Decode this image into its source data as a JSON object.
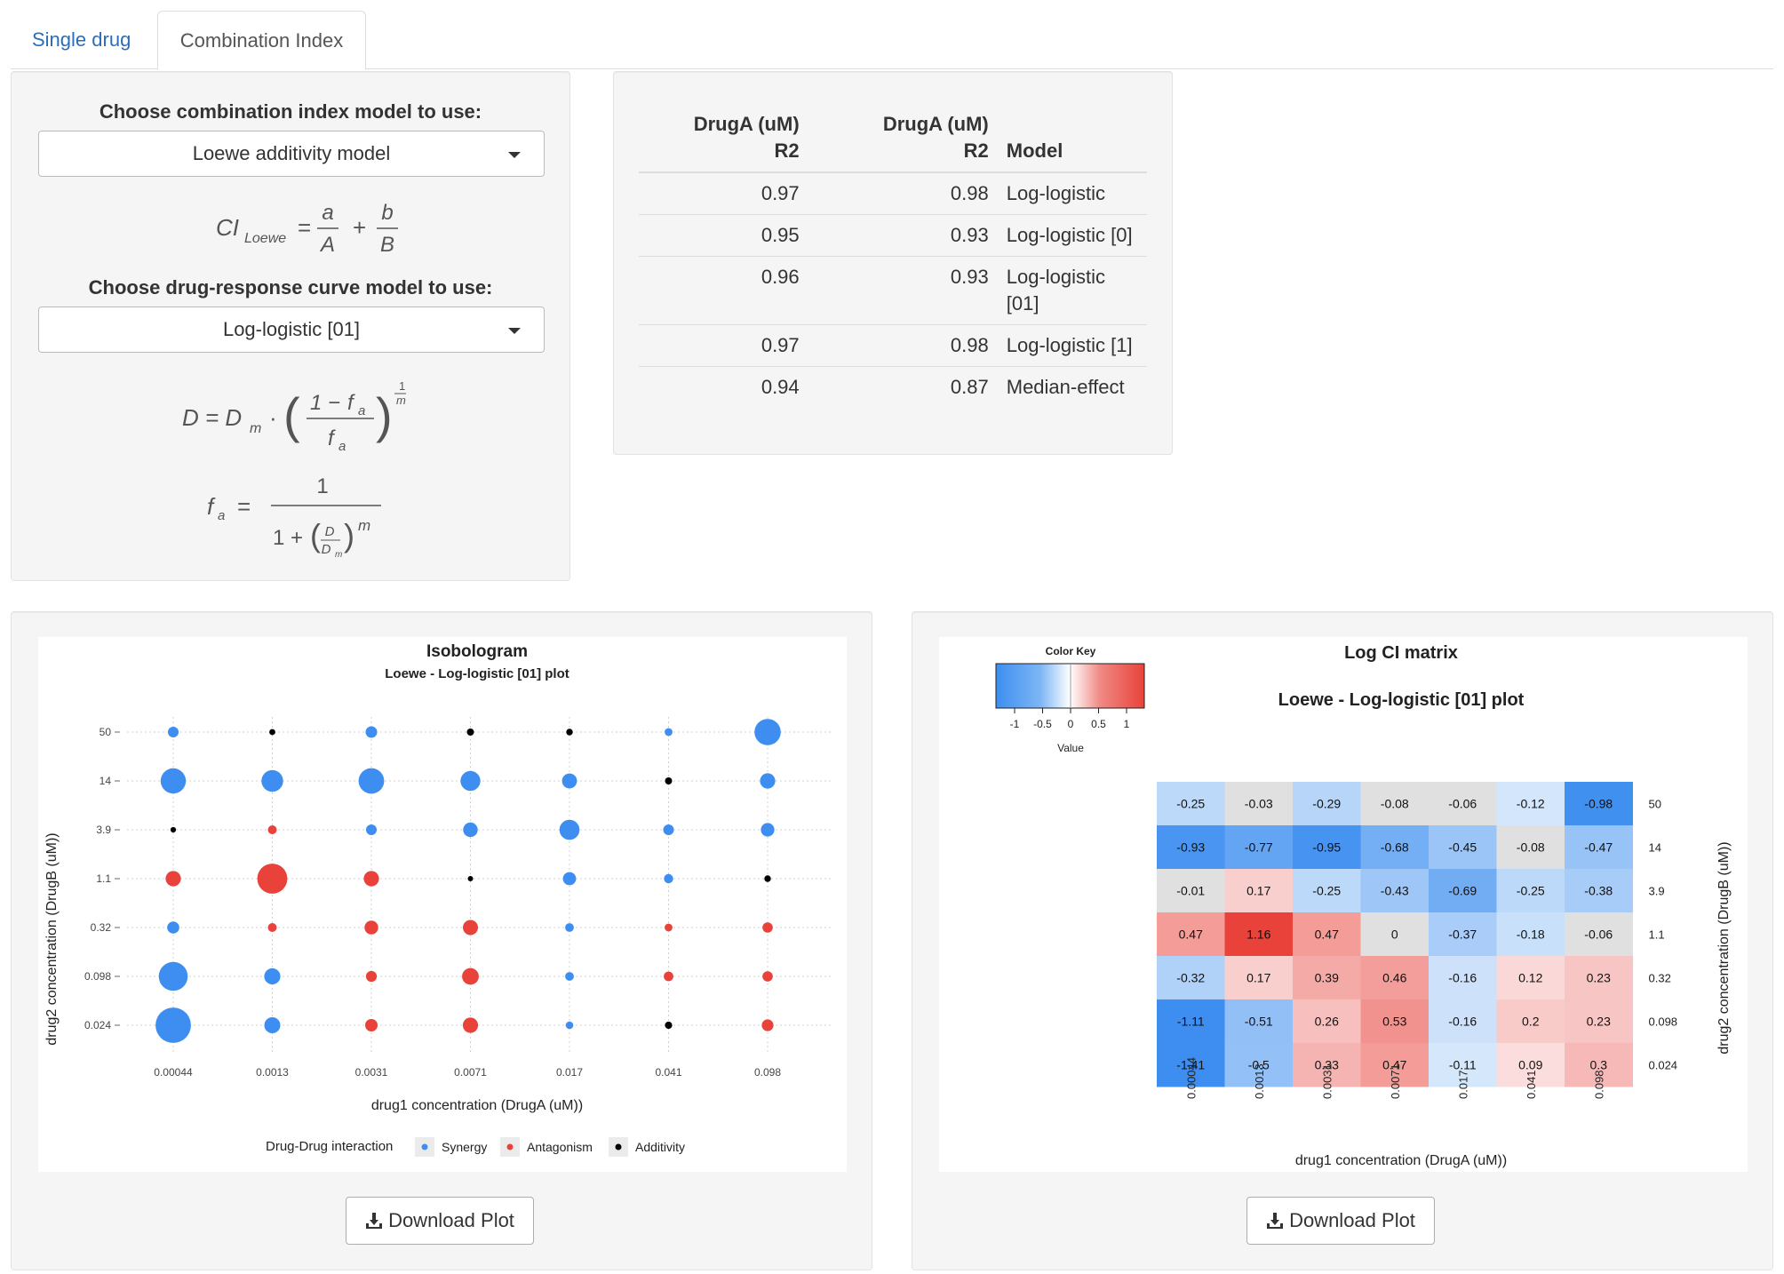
{
  "tabs": [
    {
      "label": "Single drug",
      "active": false
    },
    {
      "label": "Combination Index",
      "active": true
    }
  ],
  "controls": {
    "ci_model_label": "Choose combination index model to use:",
    "ci_model_value": "Loewe additivity model",
    "curve_model_label": "Choose drug-response curve model to use:",
    "curve_model_value": "Log-logistic [01]"
  },
  "formulas": {
    "ci_lhs": "CI",
    "ci_sub": "Loewe",
    "ci_a": "a",
    "ci_A": "A",
    "ci_b": "b",
    "ci_B": "B",
    "d_lhs": "D = D",
    "d_sub": "m",
    "fa": "f",
    "fa_sub": "a",
    "one_minus": "1 −",
    "exp_num": "1",
    "exp_den": "m",
    "one": "1",
    "one_plus": "1 +",
    "D": "D",
    "Dm": "D",
    "m": "m"
  },
  "fit_table": {
    "headers": [
      [
        "DrugA (uM)",
        "R2"
      ],
      [
        "DrugA (uM)",
        "R2"
      ],
      [
        "",
        "Model"
      ]
    ],
    "rows": [
      {
        "r2a": "0.97",
        "r2b": "0.98",
        "model": "Log-logistic"
      },
      {
        "r2a": "0.95",
        "r2b": "0.93",
        "model": "Log-logistic [0]"
      },
      {
        "r2a": "0.96",
        "r2b": "0.93",
        "model": "Log-logistic [01]"
      },
      {
        "r2a": "0.97",
        "r2b": "0.98",
        "model": "Log-logistic [1]"
      },
      {
        "r2a": "0.94",
        "r2b": "0.87",
        "model": "Median-effect"
      }
    ]
  },
  "isobologram": {
    "title": "Isobologram",
    "subtitle": "Loewe - Log-logistic [01] plot",
    "xlabel": "drug1 concentration (DrugA (uM))",
    "ylabel": "drug2 concentration (DrugB (uM))",
    "legend_title": "Drug-Drug interaction",
    "legend": [
      {
        "name": "Synergy",
        "color": "#3d8ef0"
      },
      {
        "name": "Antagonism",
        "color": "#e8423a"
      },
      {
        "name": "Additivity",
        "color": "#000000"
      }
    ]
  },
  "heatmap": {
    "title": "Log CI matrix",
    "subtitle": "Loewe - Log-logistic [01] plot",
    "key_title": "Color Key",
    "key_ticks": [
      "-1",
      "-0.5",
      "0",
      "0.5",
      "1"
    ],
    "key_label": "Value",
    "xlabel": "drug1 concentration (DrugA (uM))",
    "ylabel": "drug2 concentration (DrugB (uM))"
  },
  "chart_data": [
    {
      "type": "scatter",
      "title": "Isobologram",
      "subtitle": "Loewe - Log-logistic [01] plot",
      "x": [
        "0.00044",
        "0.0013",
        "0.0031",
        "0.0071",
        "0.017",
        "0.041",
        "0.098"
      ],
      "y": [
        "50",
        "14",
        "3.9",
        "1.1",
        "0.32",
        "0.098",
        "0.024"
      ],
      "xlabel": "drug1 concentration (DrugA (uM))",
      "ylabel": "drug2 concentration (DrugB (uM))",
      "values": [
        [
          -0.25,
          -0.03,
          -0.29,
          -0.08,
          -0.06,
          -0.12,
          -0.98
        ],
        [
          -0.93,
          -0.77,
          -0.95,
          -0.68,
          -0.45,
          -0.08,
          -0.47
        ],
        [
          -0.01,
          0.17,
          -0.25,
          -0.43,
          -0.69,
          -0.25,
          -0.38
        ],
        [
          0.47,
          1.16,
          0.47,
          0,
          -0.37,
          -0.18,
          -0.06
        ],
        [
          -0.32,
          0.17,
          0.39,
          0.46,
          -0.16,
          0.12,
          0.23
        ],
        [
          -1.11,
          -0.51,
          0.26,
          0.53,
          -0.16,
          0.2,
          0.23
        ],
        [
          -1.41,
          -0.5,
          0.33,
          0.47,
          -0.11,
          0.09,
          0.3
        ]
      ],
      "grid": true,
      "legend": "bottom"
    },
    {
      "type": "heatmap",
      "title": "Log CI matrix",
      "subtitle": "Loewe - Log-logistic [01] plot",
      "x": [
        "0.00044",
        "0.0013",
        "0.0031",
        "0.0071",
        "0.017",
        "0.041",
        "0.098"
      ],
      "y": [
        "50",
        "14",
        "3.9",
        "1.1",
        "0.32",
        "0.098",
        "0.024"
      ],
      "xlabel": "drug1 concentration (DrugA (uM))",
      "ylabel": "drug2 concentration (DrugB (uM))",
      "values": [
        [
          -0.25,
          -0.03,
          -0.29,
          -0.08,
          -0.06,
          -0.12,
          -0.98
        ],
        [
          -0.93,
          -0.77,
          -0.95,
          -0.68,
          -0.45,
          -0.08,
          -0.47
        ],
        [
          -0.01,
          0.17,
          -0.25,
          -0.43,
          -0.69,
          -0.25,
          -0.38
        ],
        [
          0.47,
          1.16,
          0.47,
          0,
          -0.37,
          -0.18,
          -0.06
        ],
        [
          -0.32,
          0.17,
          0.39,
          0.46,
          -0.16,
          0.12,
          0.23
        ],
        [
          -1.11,
          -0.51,
          0.26,
          0.53,
          -0.16,
          0.2,
          0.23
        ],
        [
          -1.41,
          -0.5,
          0.33,
          0.47,
          -0.11,
          0.09,
          0.3
        ]
      ],
      "color_range": [
        -1,
        1
      ],
      "colors": {
        "low": "#3d8ef0",
        "mid": "#ffffff",
        "high": "#e8423a"
      }
    }
  ],
  "buttons": {
    "download_label": "Download Plot"
  }
}
